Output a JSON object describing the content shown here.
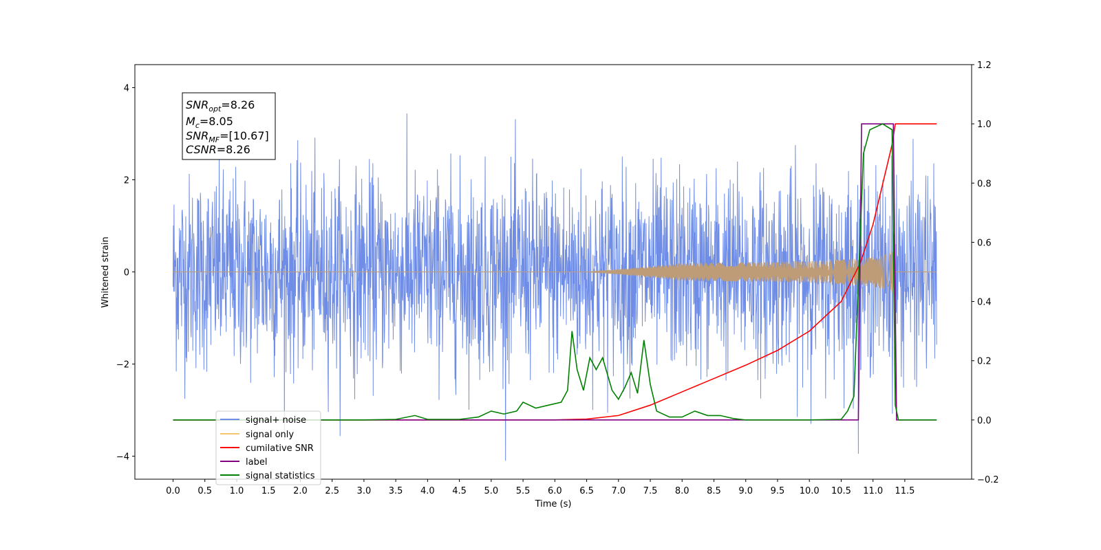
{
  "chart_data": {
    "type": "line",
    "xlabel": "Time (s)",
    "ylabel": "Whitened strain",
    "xlim": [
      -0.6,
      12.55
    ],
    "ylim_left": [
      -4.5,
      4.5
    ],
    "ylim_right": [
      -0.2,
      1.2
    ],
    "x_ticks": [
      0.0,
      0.5,
      1.0,
      1.5,
      2.0,
      2.5,
      3.0,
      3.5,
      4.0,
      4.5,
      5.0,
      5.5,
      6.0,
      6.5,
      7.0,
      7.5,
      8.0,
      8.5,
      9.0,
      9.5,
      10.0,
      10.5,
      11.0,
      11.5
    ],
    "x_tick_labels": [
      "0.0",
      "0.5",
      "1.0",
      "1.5",
      "2.0",
      "2.5",
      "3.0",
      "3.5",
      "4.0",
      "4.5",
      "5.0",
      "5.5",
      "6.0",
      "6.5",
      "7.0",
      "7.5",
      "8.0",
      "8.5",
      "9.0",
      "9.5",
      "10.0",
      "10.5",
      "11.0",
      "11.5"
    ],
    "y_left_ticks": [
      4,
      2,
      0,
      -2,
      -4
    ],
    "y_left_tick_labels": [
      "4",
      "2",
      "0",
      "−2",
      "−4"
    ],
    "y_right_ticks": [
      1.2,
      1.0,
      0.8,
      0.6,
      0.4,
      0.2,
      0.0,
      -0.2
    ],
    "y_right_tick_labels": [
      "1.2",
      "1.0",
      "0.8",
      "0.6",
      "0.4",
      "0.2",
      "0.0",
      "−0.2"
    ],
    "grid": false,
    "legend_placement": "lower-left",
    "series": [
      {
        "name": "signal+ noise",
        "axis": "left",
        "color": "#6f8de6",
        "description_values": "whitened noise, amplitude approx ±2.5 with spikes to about 4.1, on x 0.0 to 12.0",
        "x_range": [
          0.0,
          12.0
        ],
        "envelope": 2.5
      },
      {
        "name": "signal only",
        "axis": "left",
        "color": "#f5c46e",
        "x_range": [
          0.0,
          12.0
        ],
        "chirp_start_x": 6.5,
        "peak_x": 11.35,
        "peak_amplitude": 0.55
      },
      {
        "name": "cumilative SNR",
        "axis": "right",
        "color": "#ff0000",
        "points": [
          [
            0.0,
            0.0
          ],
          [
            6.0,
            0.0
          ],
          [
            6.5,
            0.003
          ],
          [
            7.0,
            0.015
          ],
          [
            7.5,
            0.05
          ],
          [
            8.0,
            0.095
          ],
          [
            8.5,
            0.14
          ],
          [
            9.0,
            0.185
          ],
          [
            9.5,
            0.235
          ],
          [
            10.0,
            0.3
          ],
          [
            10.5,
            0.4
          ],
          [
            10.8,
            0.53
          ],
          [
            11.0,
            0.66
          ],
          [
            11.2,
            0.84
          ],
          [
            11.3,
            0.93
          ],
          [
            11.35,
            1.0
          ],
          [
            12.0,
            1.0
          ]
        ]
      },
      {
        "name": "label",
        "axis": "right",
        "color": "#800080",
        "points": [
          [
            0.0,
            0.0
          ],
          [
            10.77,
            0.0
          ],
          [
            10.82,
            1.0
          ],
          [
            11.32,
            1.0
          ],
          [
            11.37,
            0.0
          ],
          [
            12.0,
            0.0
          ]
        ]
      },
      {
        "name": "signal statistics",
        "axis": "right",
        "color": "#008000",
        "points": [
          [
            0.0,
            0.0
          ],
          [
            3.0,
            0.0
          ],
          [
            3.5,
            0.002
          ],
          [
            3.8,
            0.015
          ],
          [
            4.0,
            0.002
          ],
          [
            4.5,
            0.002
          ],
          [
            4.8,
            0.01
          ],
          [
            5.0,
            0.03
          ],
          [
            5.2,
            0.02
          ],
          [
            5.4,
            0.03
          ],
          [
            5.5,
            0.06
          ],
          [
            5.7,
            0.04
          ],
          [
            5.9,
            0.05
          ],
          [
            6.1,
            0.06
          ],
          [
            6.2,
            0.1
          ],
          [
            6.27,
            0.3
          ],
          [
            6.35,
            0.17
          ],
          [
            6.45,
            0.1
          ],
          [
            6.55,
            0.21
          ],
          [
            6.65,
            0.17
          ],
          [
            6.75,
            0.21
          ],
          [
            6.9,
            0.1
          ],
          [
            7.0,
            0.07
          ],
          [
            7.1,
            0.11
          ],
          [
            7.2,
            0.16
          ],
          [
            7.3,
            0.09
          ],
          [
            7.4,
            0.27
          ],
          [
            7.5,
            0.12
          ],
          [
            7.6,
            0.03
          ],
          [
            7.8,
            0.01
          ],
          [
            8.0,
            0.01
          ],
          [
            8.2,
            0.03
          ],
          [
            8.4,
            0.015
          ],
          [
            8.6,
            0.015
          ],
          [
            8.8,
            0.005
          ],
          [
            9.0,
            0.0
          ],
          [
            10.0,
            0.0
          ],
          [
            10.5,
            0.002
          ],
          [
            10.6,
            0.03
          ],
          [
            10.7,
            0.08
          ],
          [
            10.85,
            0.9
          ],
          [
            10.95,
            0.98
          ],
          [
            11.15,
            1.0
          ],
          [
            11.3,
            0.98
          ],
          [
            11.35,
            0.05
          ],
          [
            11.4,
            0.0
          ],
          [
            12.0,
            0.0
          ]
        ]
      }
    ],
    "legend": [
      "signal+ noise",
      "signal only",
      "cumilative SNR",
      "label",
      "signal statistics"
    ],
    "annotation_box": {
      "lines": [
        {
          "sym": "SNR",
          "sub": "opt",
          "rest": "=8.26"
        },
        {
          "sym": "M",
          "sub": "c",
          "rest": "=8.05"
        },
        {
          "sym": "SNR",
          "sub": "MF",
          "rest": "=[10.67]"
        },
        {
          "sym": "CSNR",
          "sub": "",
          "rest": "=8.26"
        }
      ]
    },
    "colors": {
      "noise": "#6f8de6",
      "signal": "#f5c46e",
      "signal_overlap": "#bd9c77",
      "cumulative_snr": "#ff0000",
      "label": "#800080",
      "statistics": "#008000"
    }
  }
}
